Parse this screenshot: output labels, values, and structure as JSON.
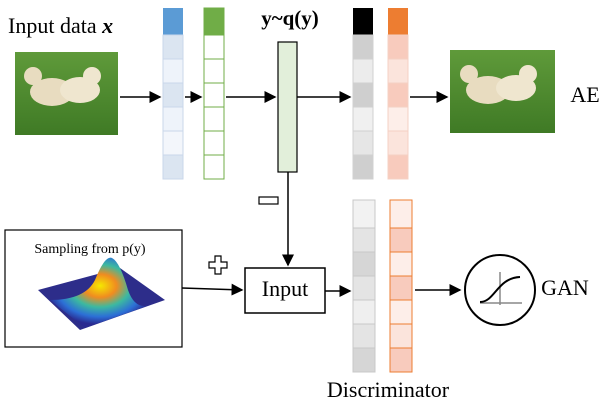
{
  "header": {
    "input_label": "Input data",
    "input_var": "x",
    "latent": "y~q(y)"
  },
  "outputs": {
    "ae": "AE",
    "gan": "GAN"
  },
  "prior": {
    "label": "Sampling from p(y)"
  },
  "input_box": {
    "label": "Input"
  },
  "discriminator": {
    "label": "Discriminator"
  }
}
